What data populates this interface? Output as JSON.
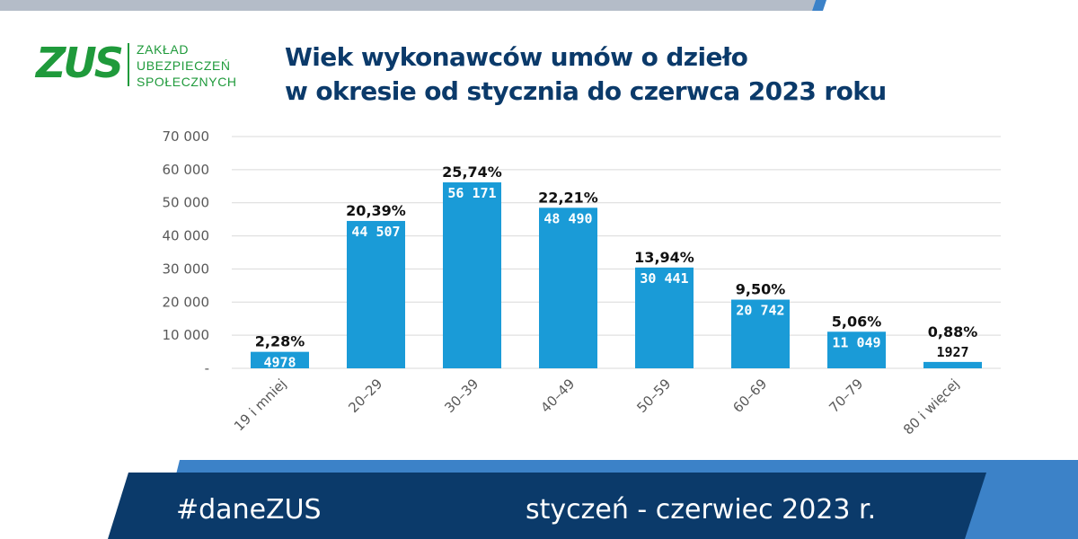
{
  "colors": {
    "bar": "#1a9bd7",
    "navy": "#0b3a6a",
    "green": "#1f9a3b",
    "footer_light": "#3c82c8",
    "top_band_grey": "#b4bcc8",
    "top_band_blue": "#3c82c8",
    "gridline": "#d9d9d9",
    "axis_text": "#595959"
  },
  "logo": {
    "mark": "ZUS",
    "lines": [
      "ZAKŁAD",
      "UBEZPIECZEŃ",
      "SPOŁECZNYCH"
    ]
  },
  "header": {
    "title_line1": "Wiek wykonawców umów o dzieło",
    "title_line2": "w okresie od stycznia do czerwca 2023 roku"
  },
  "chart_data": {
    "type": "bar",
    "title": "Wiek wykonawców umów o dzieło w okresie od stycznia do czerwca 2023 roku",
    "categories": [
      "19 i mniej",
      "20–29",
      "30–39",
      "40–49",
      "50–59",
      "60–69",
      "70–79",
      "80 i więcej"
    ],
    "values": [
      4978,
      44507,
      56171,
      48490,
      30441,
      20742,
      11049,
      1927
    ],
    "value_labels": [
      "4978",
      "44 507",
      "56 171",
      "48 490",
      "30 441",
      "20 742",
      "11 049",
      "1927"
    ],
    "percent_labels": [
      "2,28%",
      "20,39%",
      "25,74%",
      "22,21%",
      "13,94%",
      "9,50%",
      "5,06%",
      "0,88%"
    ],
    "ylim": [
      0,
      70000
    ],
    "yticks": [
      0,
      10000,
      20000,
      30000,
      40000,
      50000,
      60000,
      70000
    ],
    "ytick_labels": [
      "-",
      "10 000",
      "20 000",
      "30 000",
      "40 000",
      "50 000",
      "60 000",
      "70 000"
    ],
    "grid": true,
    "legend": "none"
  },
  "footer": {
    "hashtag": "#daneZUS",
    "period": "styczeń - czerwiec 2023 r."
  }
}
